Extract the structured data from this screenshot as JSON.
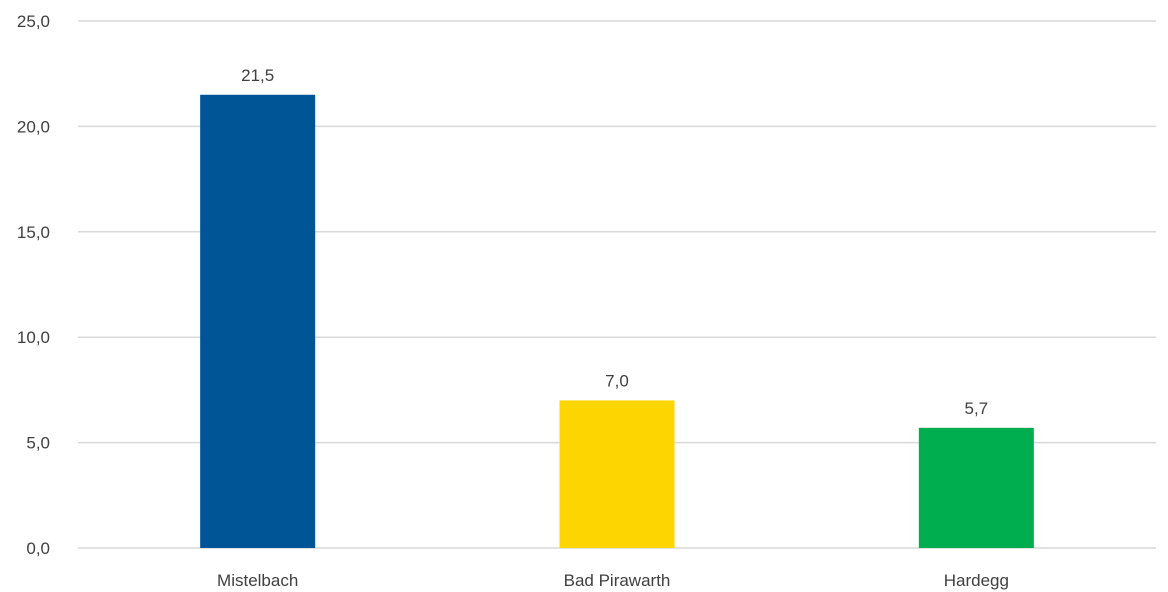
{
  "chart_data": {
    "type": "bar",
    "categories": [
      "Mistelbach",
      "Bad Pirawarth",
      "Hardegg"
    ],
    "values": [
      21.5,
      7.0,
      5.7
    ],
    "value_labels": [
      "21,5",
      "7,0",
      "5,7"
    ],
    "colors": [
      "#005596",
      "#fdd500",
      "#00ad4f"
    ],
    "ylim": [
      0,
      25
    ],
    "yticks": [
      0,
      5,
      10,
      15,
      20,
      25
    ],
    "ytick_labels": [
      "0,0",
      "5,0",
      "10,0",
      "15,0",
      "20,0",
      "25,0"
    ],
    "title": "",
    "xlabel": "",
    "ylabel": "",
    "grid": true,
    "legend": "none"
  }
}
